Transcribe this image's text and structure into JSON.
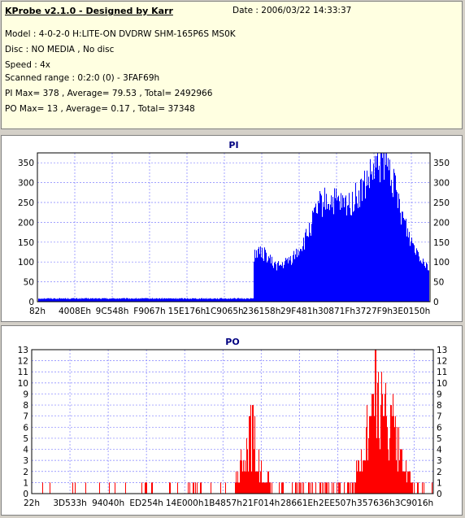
{
  "header": {
    "title": "KProbe v2.1.0 - Designed by Karr",
    "date": "Date : 2006/03/22 14:33:37",
    "lines": [
      "Model : 4-0-2-0 H:LITE-ON DVDRW SHM-165P6S MS0K",
      "Disc : NO MEDIA , No disc",
      "Speed : 4x",
      "Scanned range : 0:2:0 (0) - 3FAF69h",
      "PI Max= 378 , Average= 79.53 , Total= 2492966",
      "PO Max= 13 , Average= 0.17 , Total= 37348"
    ]
  },
  "colors": {
    "bars": "#ff0000",
    "pi": "#0000ff",
    "background": "#d4d0c8",
    "panel": "#ffffff",
    "info": "#ffffe1"
  },
  "chart_data": [
    {
      "type": "bar",
      "title": "PI",
      "ylim": [
        0,
        375
      ],
      "yticks": [
        0,
        50,
        100,
        150,
        200,
        250,
        300,
        350
      ],
      "xticks": [
        "82h",
        "4008Eh",
        "9C548h",
        "F9067h",
        "15E176h",
        "1C9065h",
        "236158h",
        "29F481h",
        "30871Fh",
        "3727F9h",
        "3E0150h"
      ],
      "grid": true,
      "color": "#0000ff",
      "profile_x": [
        0,
        0.55,
        0.551,
        0.58,
        0.6,
        0.62,
        0.65,
        0.68,
        0.7,
        0.72,
        0.74,
        0.76,
        0.78,
        0.8,
        0.82,
        0.84,
        0.86,
        0.88,
        0.9,
        0.92,
        0.95,
        0.98,
        1.0
      ],
      "profile_y": [
        8,
        8,
        125,
        120,
        95,
        90,
        110,
        150,
        200,
        245,
        255,
        250,
        240,
        250,
        270,
        300,
        330,
        355,
        330,
        250,
        160,
        110,
        85
      ]
    },
    {
      "type": "bar",
      "title": "PO",
      "ylim": [
        0,
        13
      ],
      "yticks": [
        0,
        1,
        2,
        3,
        4,
        5,
        6,
        7,
        8,
        9,
        10,
        11,
        12,
        13
      ],
      "xticks": [
        "22h",
        "3D533h",
        "94040h",
        "ED254h",
        "14E000h",
        "1B4857h",
        "21F014h",
        "28661Eh",
        "2EE507h",
        "357636h",
        "3C9016h"
      ],
      "grid": true,
      "color": "#ff0000",
      "profile_x": [
        0,
        0.5,
        0.52,
        0.55,
        0.57,
        0.6,
        0.8,
        0.82,
        0.86,
        0.9,
        0.92,
        0.95,
        1.0
      ],
      "profile_y": [
        0.2,
        0.2,
        3,
        8,
        3,
        0.5,
        0.8,
        4,
        12,
        8,
        4,
        1,
        0.5
      ]
    }
  ]
}
